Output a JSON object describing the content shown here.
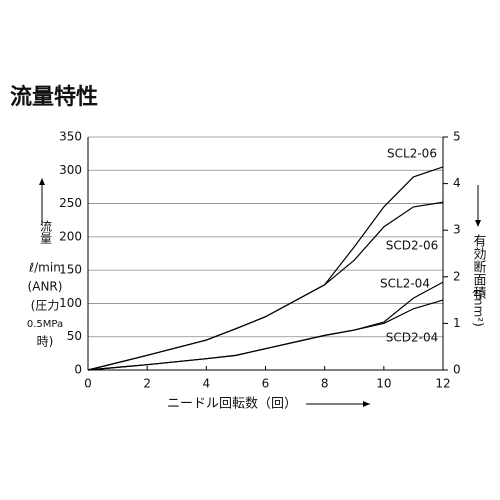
{
  "chart_data": {
    "type": "line",
    "title": "流量特性",
    "x_label": "ニードル回転数（回）",
    "y_label": [
      "流量",
      "ℓ/min",
      "(ANR)",
      "(圧力",
      "0.5MPa",
      "時)"
    ],
    "y2_label": [
      "有効断面積",
      "(mm²)"
    ],
    "x": [
      0,
      2,
      4,
      5,
      6,
      8,
      9,
      10,
      11,
      12
    ],
    "series": [
      {
        "name": "SCL2-06",
        "color": "#000000",
        "values": [
          0,
          22,
          45,
          62,
          80,
          128,
          185,
          245,
          290,
          305
        ]
      },
      {
        "name": "SCD2-06",
        "color": "#000000",
        "values": [
          0,
          22,
          45,
          62,
          80,
          128,
          165,
          215,
          245,
          252
        ]
      },
      {
        "name": "SCL2-04",
        "color": "#000000",
        "values": [
          0,
          8,
          17,
          22,
          32,
          52,
          60,
          72,
          108,
          132
        ]
      },
      {
        "name": "SCD2-04",
        "color": "#000000",
        "values": [
          0,
          8,
          17,
          22,
          32,
          52,
          60,
          70,
          92,
          105
        ]
      }
    ],
    "xlim": [
      0,
      12
    ],
    "xticks": [
      0,
      2,
      4,
      6,
      8,
      10,
      12
    ],
    "ylim": [
      0,
      350
    ],
    "yticks": [
      0,
      50,
      100,
      150,
      200,
      250,
      300,
      350
    ],
    "y2lim": [
      0,
      5
    ],
    "y2ticks": [
      0,
      1,
      2,
      3,
      4,
      5
    ],
    "grid": true
  }
}
